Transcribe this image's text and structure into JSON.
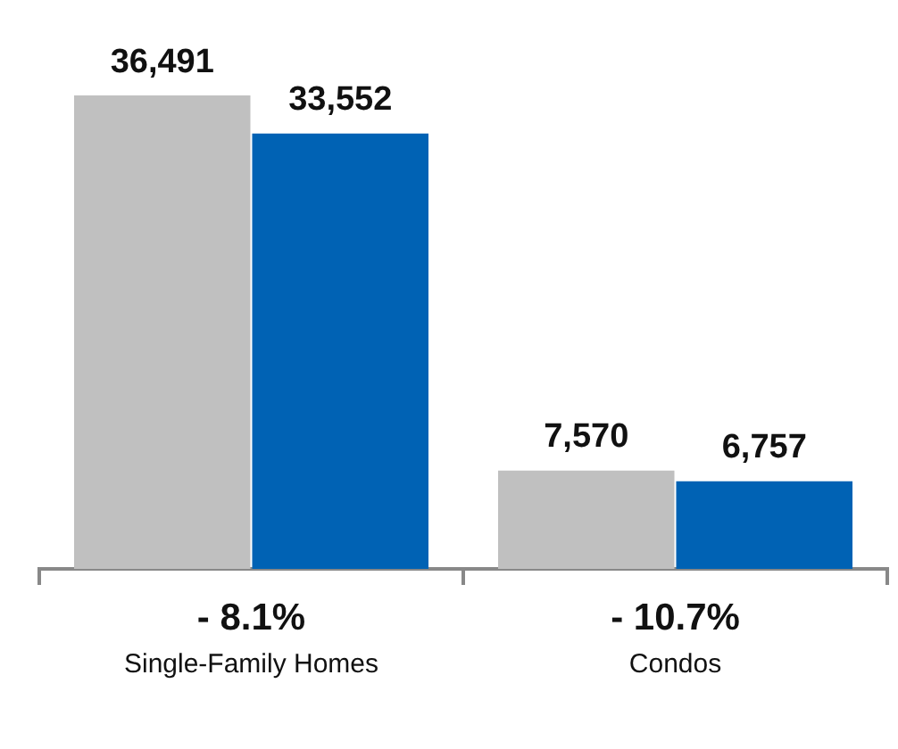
{
  "chart_data": {
    "type": "bar",
    "categories": [
      "Single-Family Homes",
      "Condos"
    ],
    "series": [
      {
        "color": "#c0c0c0",
        "values": [
          36491,
          7570
        ],
        "value_labels": [
          "36,491",
          "7,570"
        ]
      },
      {
        "color": "#0062b4",
        "values": [
          33552,
          6757
        ],
        "value_labels": [
          "33,552",
          "6,757"
        ]
      }
    ],
    "grid": false,
    "legend": false,
    "tick_labels": "x",
    "annotations": [
      "- 8.1%",
      "- 10.7%"
    ]
  }
}
